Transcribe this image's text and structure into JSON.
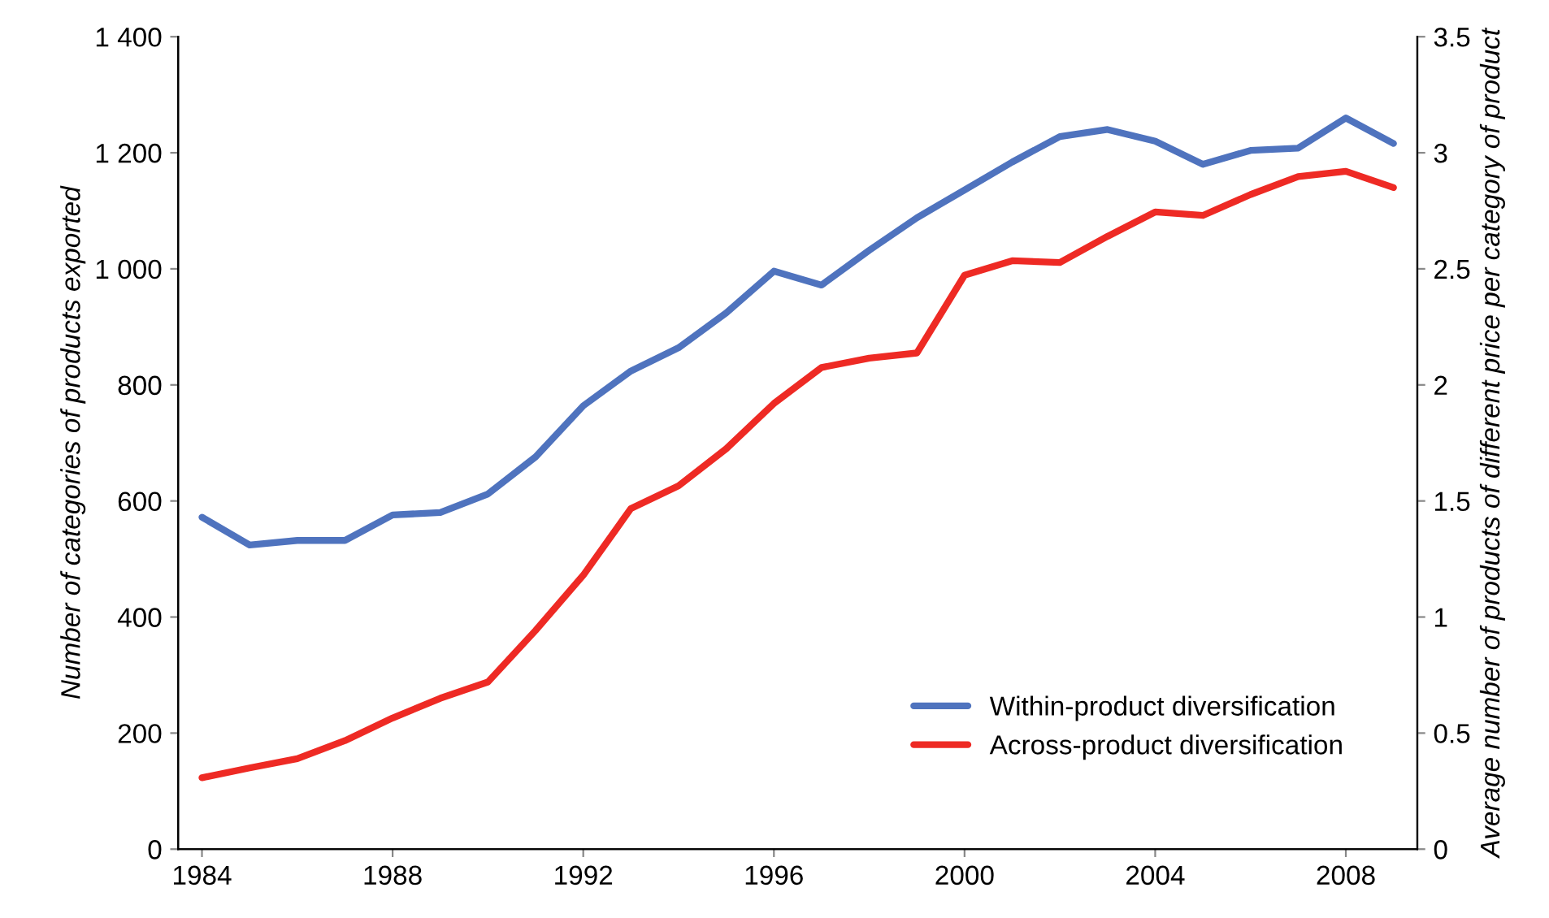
{
  "chart_data": {
    "type": "line",
    "ylabel": "Number of categories of products exported",
    "y2label": "Average number of products of different price per category of product",
    "x": [
      1984,
      1985,
      1986,
      1987,
      1988,
      1989,
      1990,
      1991,
      1992,
      1993,
      1994,
      1995,
      1996,
      1997,
      1998,
      1999,
      2000,
      2001,
      2002,
      2003,
      2004,
      2005,
      2006,
      2007,
      2008,
      2009
    ],
    "series": [
      {
        "name": "Within-product diversification",
        "color": "#4f73be",
        "axis": "y2",
        "values": [
          1.43,
          1.31,
          1.33,
          1.33,
          1.44,
          1.45,
          1.53,
          1.69,
          1.91,
          2.06,
          2.16,
          2.31,
          2.49,
          2.43,
          2.58,
          2.72,
          2.84,
          2.96,
          3.07,
          3.1,
          3.05,
          2.95,
          3.01,
          3.02,
          3.15,
          3.04
        ]
      },
      {
        "name": "Across-product diversification",
        "color": "#ee2a24",
        "axis": "y",
        "values": [
          123,
          140,
          156,
          187,
          226,
          260,
          288,
          377,
          472,
          587,
          626,
          690,
          768,
          830,
          846,
          855,
          989,
          1014,
          1011,
          1056,
          1098,
          1092,
          1128,
          1159,
          1168,
          1140
        ]
      }
    ],
    "xlim": [
      1983.5,
      2009.5
    ],
    "xticks": [
      1984,
      1988,
      1992,
      1996,
      2000,
      2004,
      2008
    ],
    "ylim": [
      0,
      1400
    ],
    "yticks": [
      0,
      200,
      400,
      600,
      800,
      {
        "value": 1000,
        "label": "1 000"
      },
      {
        "value": 1200,
        "label": "1 200"
      },
      {
        "value": 1400,
        "label": "1 400"
      }
    ],
    "y2lim": [
      0,
      3.5
    ],
    "y2ticks": [
      0,
      0.5,
      1,
      1.5,
      2,
      2.5,
      3,
      3.5
    ],
    "grid": false,
    "legend": "bottom right",
    "line_style": "solid",
    "marker": "none"
  }
}
